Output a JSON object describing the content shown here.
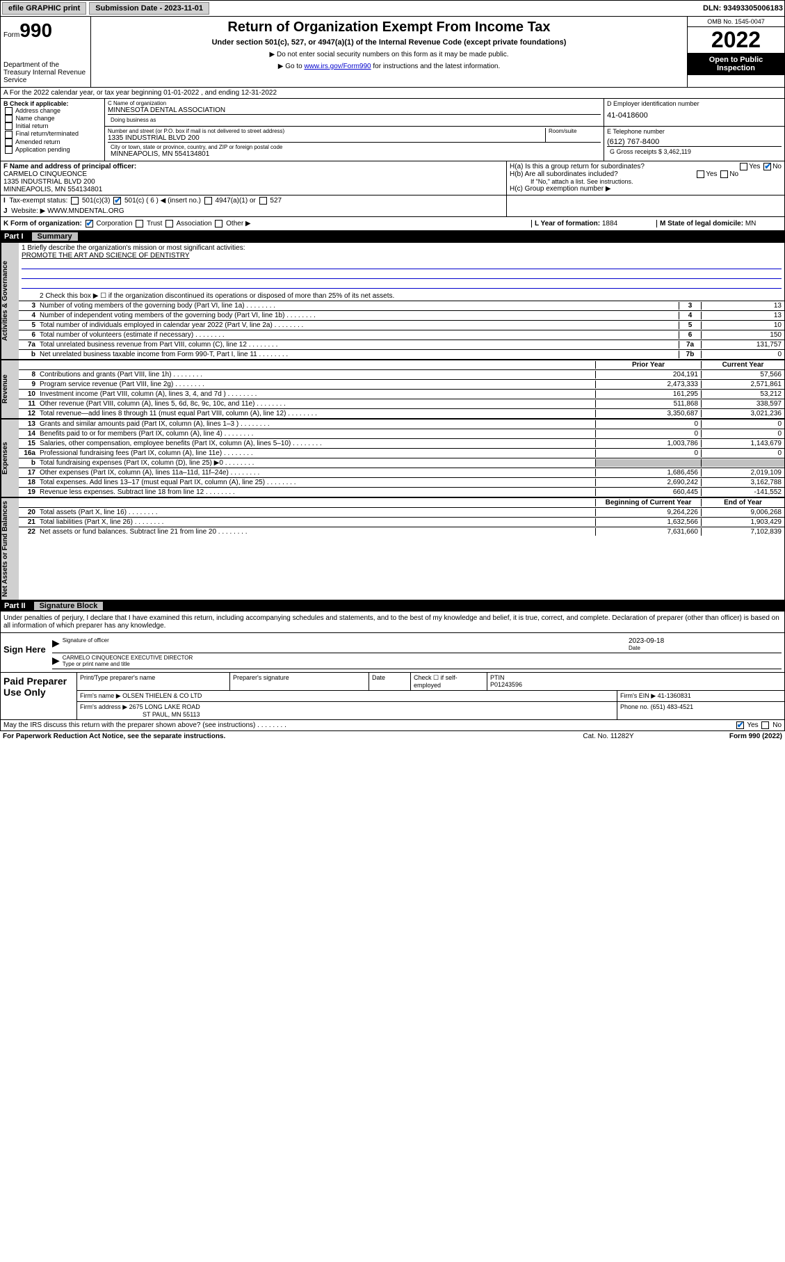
{
  "topbar": {
    "efile": "efile GRAPHIC print",
    "submission_label": "Submission Date - 2023-11-01",
    "dln": "DLN: 93493305006183"
  },
  "header": {
    "form_label": "Form",
    "form_number": "990",
    "dept": "Department of the Treasury\nInternal Revenue Service",
    "title": "Return of Organization Exempt From Income Tax",
    "subtitle": "Under section 501(c), 527, or 4947(a)(1) of the Internal Revenue Code (except private foundations)",
    "note1": "▶ Do not enter social security numbers on this form as it may be made public.",
    "note2_pre": "▶ Go to ",
    "note2_link": "www.irs.gov/Form990",
    "note2_post": " for instructions and the latest information.",
    "omb": "OMB No. 1545-0047",
    "year": "2022",
    "open": "Open to Public Inspection"
  },
  "line_a": "A For the 2022 calendar year, or tax year beginning 01-01-2022   , and ending 12-31-2022",
  "col_b": {
    "header": "B Check if applicable:",
    "items": [
      "Address change",
      "Name change",
      "Initial return",
      "Final return/terminated",
      "Amended return",
      "Application pending"
    ]
  },
  "col_c": {
    "name_lbl": "C Name of organization",
    "name": "MINNESOTA DENTAL ASSOCIATION",
    "dba_lbl": "Doing business as",
    "dba": "",
    "addr_lbl": "Number and street (or P.O. box if mail is not delivered to street address)",
    "room_lbl": "Room/suite",
    "addr": "1335 INDUSTRIAL BLVD 200",
    "city_lbl": "City or town, state or province, country, and ZIP or foreign postal code",
    "city": "MINNEAPOLIS, MN  554134801"
  },
  "col_d": {
    "ein_lbl": "D Employer identification number",
    "ein": "41-0418600",
    "tel_lbl": "E Telephone number",
    "tel": "(612) 767-8400",
    "gross_lbl": "G Gross receipts $",
    "gross": "3,462,119"
  },
  "row_f": {
    "lbl": "F Name and address of principal officer:",
    "name": "CARMELO CINQUEONCE",
    "addr1": "1335 INDUSTRIAL BLVD 200",
    "addr2": "MINNEAPOLIS, MN  554134801"
  },
  "row_h": {
    "ha": "H(a)  Is this a group return for subordinates?",
    "hb": "H(b)  Are all subordinates included?",
    "hb_note": "If \"No,\" attach a list. See instructions.",
    "hc": "H(c)  Group exemption number ▶"
  },
  "row_i": {
    "lbl": "Tax-exempt status:",
    "opts": [
      "501(c)(3)",
      "501(c) ( 6 ) ◀ (insert no.)",
      "4947(a)(1) or",
      "527"
    ]
  },
  "row_j": {
    "lbl": "Website: ▶",
    "val": "WWW.MNDENTAL.ORG"
  },
  "row_k": {
    "lbl": "K Form of organization:",
    "opts": [
      "Corporation",
      "Trust",
      "Association",
      "Other ▶"
    ],
    "l_lbl": "L Year of formation:",
    "l_val": "1884",
    "m_lbl": "M State of legal domicile:",
    "m_val": "MN"
  },
  "part1": {
    "num": "Part I",
    "title": "Summary"
  },
  "mission": {
    "q": "1  Briefly describe the organization's mission or most significant activities:",
    "text": "PROMOTE THE ART AND SCIENCE OF DENTISTRY"
  },
  "line2": "2   Check this box ▶ ☐  if the organization discontinued its operations or disposed of more than 25% of its net assets.",
  "gov_lines": [
    {
      "n": "3",
      "t": "Number of voting members of the governing body (Part VI, line 1a)",
      "b": "3",
      "v": "13"
    },
    {
      "n": "4",
      "t": "Number of independent voting members of the governing body (Part VI, line 1b)",
      "b": "4",
      "v": "13"
    },
    {
      "n": "5",
      "t": "Total number of individuals employed in calendar year 2022 (Part V, line 2a)",
      "b": "5",
      "v": "10"
    },
    {
      "n": "6",
      "t": "Total number of volunteers (estimate if necessary)",
      "b": "6",
      "v": "150"
    },
    {
      "n": "7a",
      "t": "Total unrelated business revenue from Part VIII, column (C), line 12",
      "b": "7a",
      "v": "131,757"
    },
    {
      "n": "b",
      "t": "Net unrelated business taxable income from Form 990-T, Part I, line 11",
      "b": "7b",
      "v": "0"
    }
  ],
  "col_headers": {
    "prior": "Prior Year",
    "current": "Current Year"
  },
  "rev_lines": [
    {
      "n": "8",
      "t": "Contributions and grants (Part VIII, line 1h)",
      "p": "204,191",
      "c": "57,566"
    },
    {
      "n": "9",
      "t": "Program service revenue (Part VIII, line 2g)",
      "p": "2,473,333",
      "c": "2,571,861"
    },
    {
      "n": "10",
      "t": "Investment income (Part VIII, column (A), lines 3, 4, and 7d )",
      "p": "161,295",
      "c": "53,212"
    },
    {
      "n": "11",
      "t": "Other revenue (Part VIII, column (A), lines 5, 6d, 8c, 9c, 10c, and 11e)",
      "p": "511,868",
      "c": "338,597"
    },
    {
      "n": "12",
      "t": "Total revenue—add lines 8 through 11 (must equal Part VIII, column (A), line 12)",
      "p": "3,350,687",
      "c": "3,021,236"
    }
  ],
  "exp_lines": [
    {
      "n": "13",
      "t": "Grants and similar amounts paid (Part IX, column (A), lines 1–3 )",
      "p": "0",
      "c": "0"
    },
    {
      "n": "14",
      "t": "Benefits paid to or for members (Part IX, column (A), line 4)",
      "p": "0",
      "c": "0"
    },
    {
      "n": "15",
      "t": "Salaries, other compensation, employee benefits (Part IX, column (A), lines 5–10)",
      "p": "1,003,786",
      "c": "1,143,679"
    },
    {
      "n": "16a",
      "t": "Professional fundraising fees (Part IX, column (A), line 11e)",
      "p": "0",
      "c": "0"
    },
    {
      "n": "b",
      "t": "Total fundraising expenses (Part IX, column (D), line 25) ▶0",
      "p": "",
      "c": "",
      "gray": true
    },
    {
      "n": "17",
      "t": "Other expenses (Part IX, column (A), lines 11a–11d, 11f–24e)",
      "p": "1,686,456",
      "c": "2,019,109"
    },
    {
      "n": "18",
      "t": "Total expenses. Add lines 13–17 (must equal Part IX, column (A), line 25)",
      "p": "2,690,242",
      "c": "3,162,788"
    },
    {
      "n": "19",
      "t": "Revenue less expenses. Subtract line 18 from line 12",
      "p": "660,445",
      "c": "-141,552"
    }
  ],
  "net_headers": {
    "begin": "Beginning of Current Year",
    "end": "End of Year"
  },
  "net_lines": [
    {
      "n": "20",
      "t": "Total assets (Part X, line 16)",
      "p": "9,264,226",
      "c": "9,006,268"
    },
    {
      "n": "21",
      "t": "Total liabilities (Part X, line 26)",
      "p": "1,632,566",
      "c": "1,903,429"
    },
    {
      "n": "22",
      "t": "Net assets or fund balances. Subtract line 21 from line 20",
      "p": "7,631,660",
      "c": "7,102,839"
    }
  ],
  "part2": {
    "num": "Part II",
    "title": "Signature Block"
  },
  "penalty": "Under penalties of perjury, I declare that I have examined this return, including accompanying schedules and statements, and to the best of my knowledge and belief, it is true, correct, and complete. Declaration of preparer (other than officer) is based on all information of which preparer has any knowledge.",
  "sign": {
    "here": "Sign Here",
    "sig_lbl": "Signature of officer",
    "date_lbl": "Date",
    "date": "2023-09-18",
    "name": "CARMELO CINQUEONCE  EXECUTIVE DIRECTOR",
    "name_lbl": "Type or print name and title"
  },
  "paid": {
    "title": "Paid Preparer Use Only",
    "col1": "Print/Type preparer's name",
    "col2": "Preparer's signature",
    "col3": "Date",
    "col4_chk": "Check ☐ if self-employed",
    "col5_lbl": "PTIN",
    "col5": "P01243596",
    "firm_name_lbl": "Firm's name    ▶",
    "firm_name": "OLSEN THIELEN & CO LTD",
    "firm_ein_lbl": "Firm's EIN ▶",
    "firm_ein": "41-1360831",
    "firm_addr_lbl": "Firm's address ▶",
    "firm_addr1": "2675 LONG LAKE ROAD",
    "firm_addr2": "ST PAUL, MN  55113",
    "phone_lbl": "Phone no.",
    "phone": "(651) 483-4521"
  },
  "discuss": "May the IRS discuss this return with the preparer shown above? (see instructions)",
  "footer": {
    "left": "For Paperwork Reduction Act Notice, see the separate instructions.",
    "mid": "Cat. No. 11282Y",
    "right": "Form 990 (2022)"
  },
  "side_labels": {
    "gov": "Activities & Governance",
    "rev": "Revenue",
    "exp": "Expenses",
    "net": "Net Assets or Fund Balances"
  }
}
